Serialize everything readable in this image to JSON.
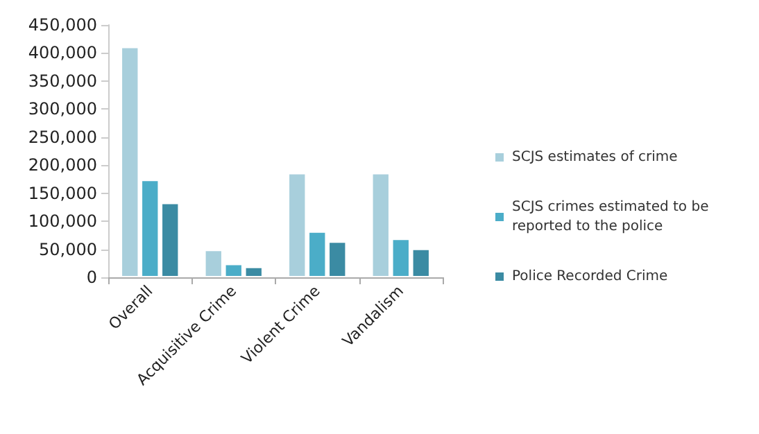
{
  "chart_data": {
    "type": "bar",
    "categories": [
      "Overall",
      "Acquisitive Crime",
      "Violent Crime",
      "Vandalism"
    ],
    "series": [
      {
        "name": "SCJS estimates of crime",
        "color": "#a8cfdc",
        "values": [
          411000,
          49000,
          186000,
          186000
        ]
      },
      {
        "name": "SCJS crimes estimated to be reported to the police",
        "color": "#4badc8",
        "values": [
          174000,
          24000,
          82000,
          69000
        ]
      },
      {
        "name": "Police Recorded Crime",
        "color": "#3b8ba3",
        "values": [
          133000,
          19000,
          64000,
          51000
        ]
      }
    ],
    "ylim": [
      0,
      450000
    ],
    "yticks": [
      0,
      {
        "value": 50000,
        "label": "50,000"
      },
      {
        "value": 100000,
        "label": "100,000"
      },
      {
        "value": 150000,
        "label": "150,000"
      },
      {
        "value": 200000,
        "label": "200,000"
      },
      {
        "value": 250000,
        "label": "250,000"
      },
      {
        "value": 300000,
        "label": "300,000"
      },
      {
        "value": 350000,
        "label": "350,000"
      },
      {
        "value": 400000,
        "label": "400,000"
      },
      {
        "value": 450000,
        "label": "450,000"
      }
    ],
    "grid": false,
    "legend": "right"
  }
}
